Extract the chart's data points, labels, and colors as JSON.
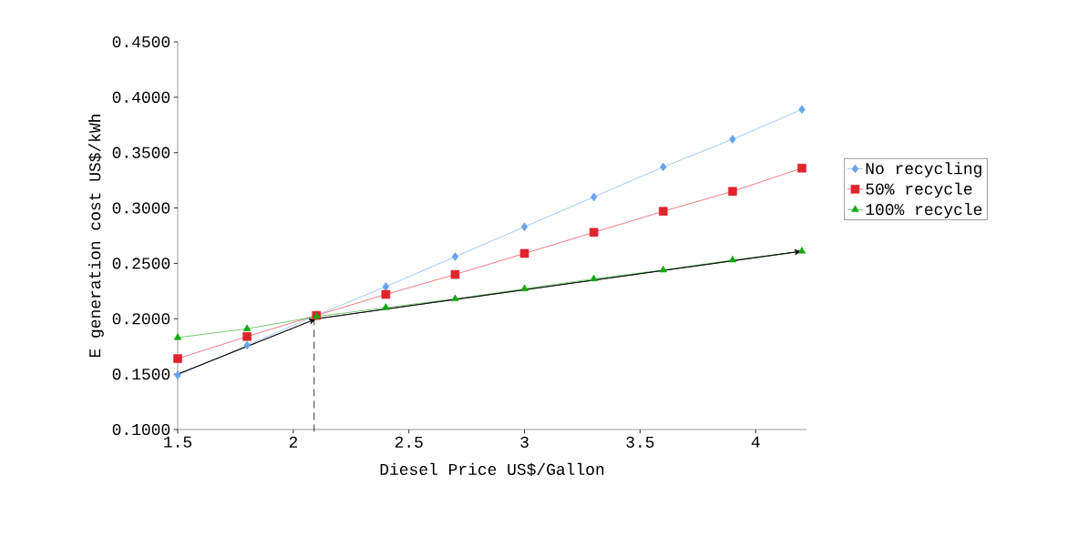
{
  "chart_data": {
    "type": "line",
    "xlabel": "Diesel Price US$/Gallon",
    "ylabel": "E generation cost US$/kWh",
    "xlim": [
      1.5,
      4.22
    ],
    "ylim": [
      0.1,
      0.45
    ],
    "xticks": [
      1.5,
      2,
      2.5,
      3,
      3.5,
      4
    ],
    "yticks": [
      {
        "value": 0.1,
        "label": "0.1000"
      },
      {
        "value": 0.15,
        "label": "0.1500"
      },
      {
        "value": 0.2,
        "label": "0.2000"
      },
      {
        "value": 0.25,
        "label": "0.2500"
      },
      {
        "value": 0.3,
        "label": "0.3000"
      },
      {
        "value": 0.35,
        "label": "0.3500"
      },
      {
        "value": 0.4,
        "label": "0.4000"
      },
      {
        "value": 0.45,
        "label": "0.4500"
      }
    ],
    "x": [
      1.5,
      1.8,
      2.1,
      2.4,
      2.7,
      3.0,
      3.3,
      3.6,
      3.9,
      4.2
    ],
    "series": [
      {
        "name": "No recycling",
        "color": "#66a3f0",
        "marker": "diamond",
        "values": [
          0.149,
          0.176,
          0.203,
          0.229,
          0.256,
          0.283,
          0.31,
          0.337,
          0.362,
          0.389
        ]
      },
      {
        "name": "50% recycle",
        "color": "#e0242c",
        "marker": "square",
        "values": [
          0.164,
          0.184,
          0.203,
          0.222,
          0.24,
          0.259,
          0.278,
          0.297,
          0.315,
          0.336
        ]
      },
      {
        "name": "100% recycle",
        "color": "#14a814",
        "marker": "triangle",
        "values": [
          0.183,
          0.191,
          0.202,
          0.21,
          0.218,
          0.227,
          0.236,
          0.244,
          0.253,
          0.261
        ]
      },
      {
        "type": "line",
        "color": "#000000",
        "marker": "none",
        "x": [
          1.5,
          2.1,
          4.2
        ],
        "values": [
          0.15,
          0.2,
          0.261
        ]
      }
    ],
    "ref_lines": [
      {
        "axis": "x",
        "value": 2.09,
        "color": "#000000",
        "line_style": "dashed"
      }
    ],
    "legend": "right",
    "grid": false
  }
}
